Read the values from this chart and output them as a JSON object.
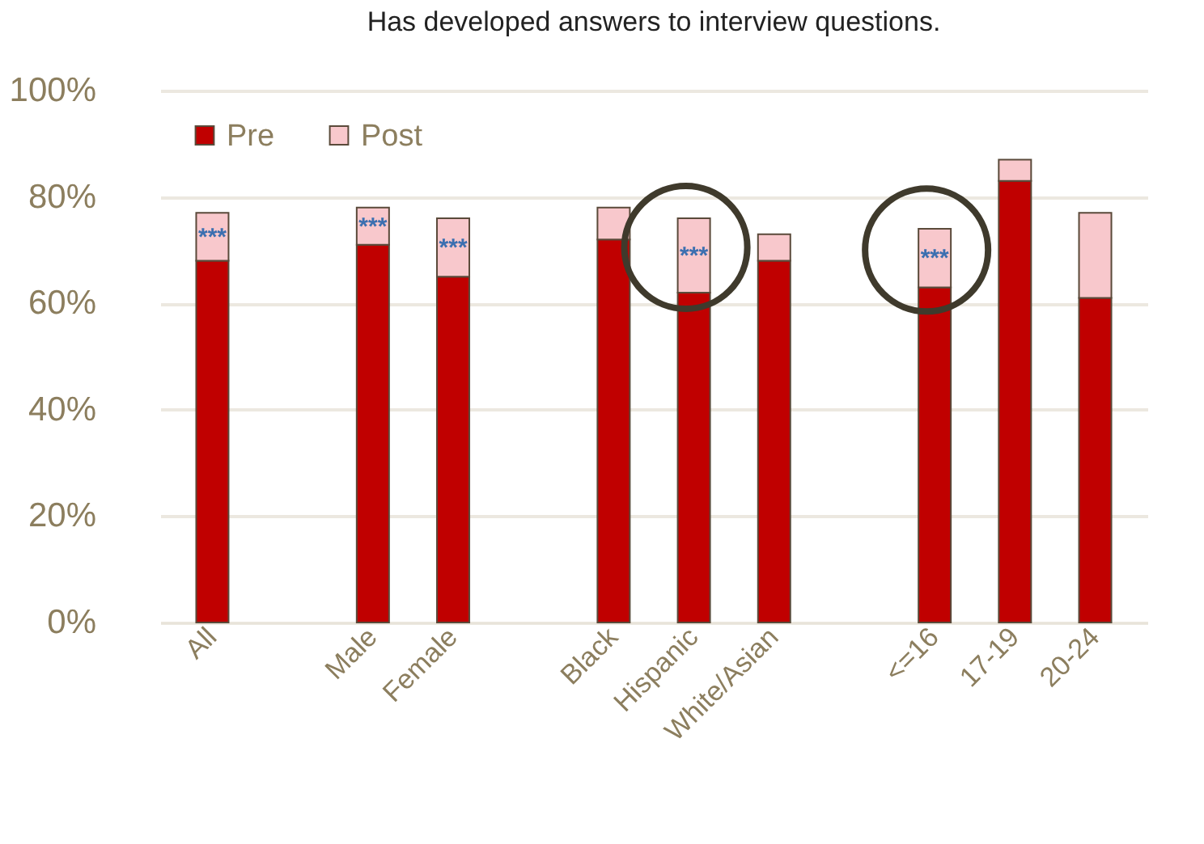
{
  "chart_data": {
    "type": "bar",
    "title": "Has developed answers to interview questions.",
    "categories": [
      "All",
      null,
      "Male",
      "Female",
      null,
      "Black",
      "Hispanic",
      "White/Asian",
      null,
      "<=16",
      "17-19",
      "20-24"
    ],
    "stacked": true,
    "series": [
      {
        "name": "Pre",
        "color": "#c00000",
        "values": [
          68,
          null,
          71,
          65,
          null,
          72,
          62,
          68,
          null,
          63,
          83,
          61
        ]
      },
      {
        "name": "Post",
        "color": "#f8c8cc",
        "values": [
          9,
          null,
          7,
          11,
          null,
          6,
          14,
          5,
          null,
          11,
          4,
          16
        ]
      }
    ],
    "ylim": [
      0,
      100
    ],
    "yticks": [
      {
        "value": 0,
        "label": "0%"
      },
      {
        "value": 20,
        "label": "20%"
      },
      {
        "value": 40,
        "label": "40%"
      },
      {
        "value": 60,
        "label": "60%"
      },
      {
        "value": 80,
        "label": "80%"
      },
      {
        "value": 100,
        "label": "100%"
      }
    ],
    "grid": "y",
    "legend": "top left",
    "annotations": [
      "***",
      "***",
      "***",
      "***",
      "***"
    ]
  }
}
